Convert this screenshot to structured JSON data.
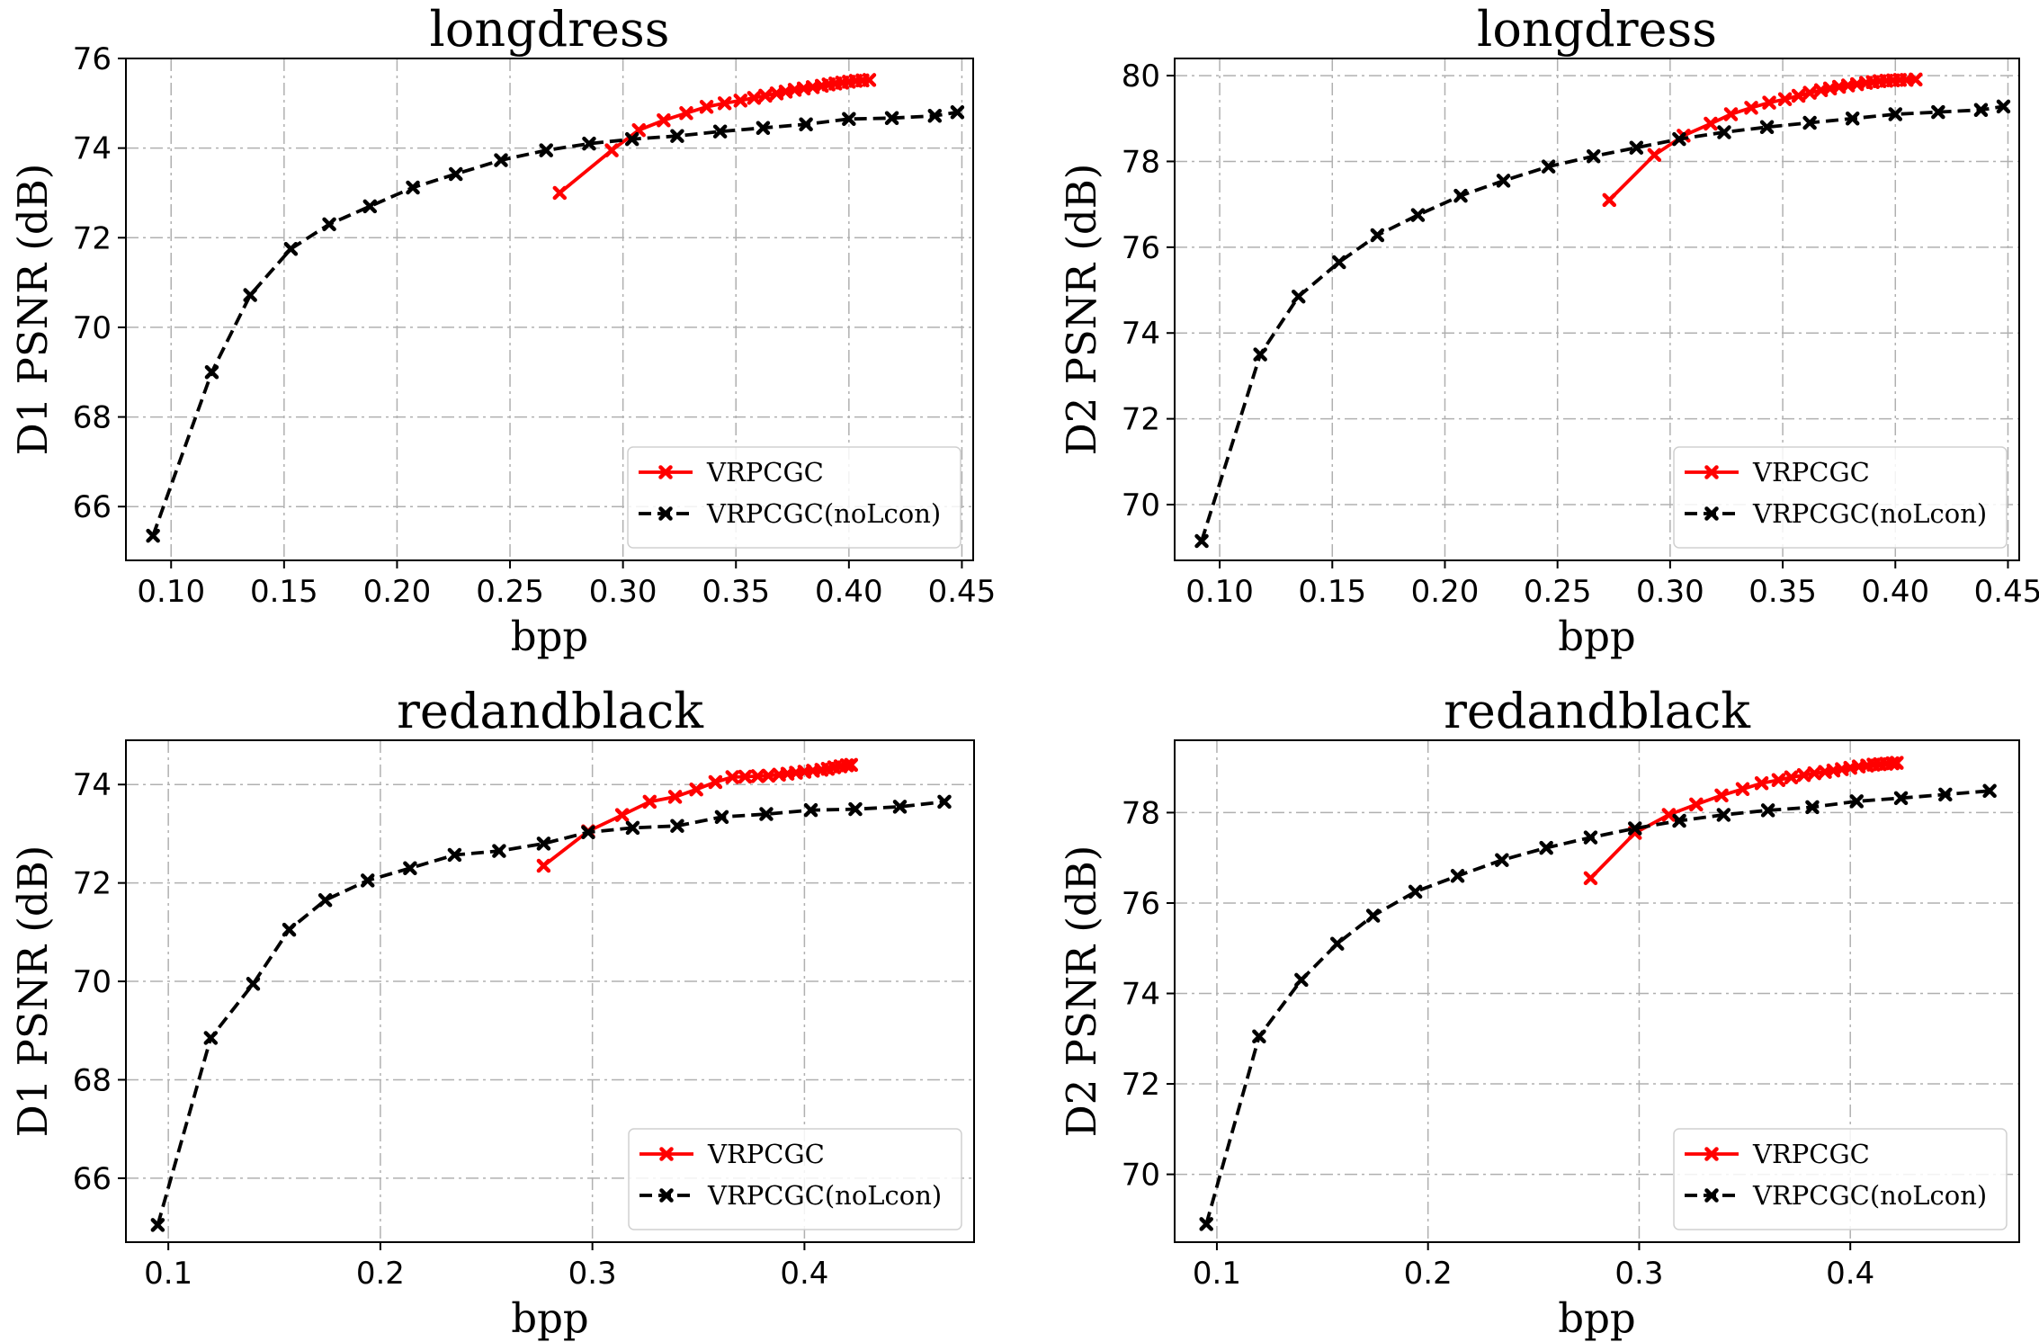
{
  "chart_data": [
    {
      "type": "line",
      "title": "longdress",
      "xlabel": "bpp",
      "ylabel": "D1 PSNR (dB)",
      "xlim": [
        0.08,
        0.455
      ],
      "ylim": [
        64.8,
        76
      ],
      "xticks": [
        0.1,
        0.15,
        0.2,
        0.25,
        0.3,
        0.35,
        0.4,
        0.45
      ],
      "xtick_labels": [
        "0.10",
        "0.15",
        "0.20",
        "0.25",
        "0.30",
        "0.35",
        "0.40",
        "0.45"
      ],
      "yticks": [
        66,
        68,
        70,
        72,
        74,
        76
      ],
      "ytick_labels": [
        "66",
        "68",
        "70",
        "72",
        "74",
        "76"
      ],
      "grid": true,
      "legend_position": "lower-right",
      "series": [
        {
          "name": "VRPCGC",
          "color": "#ff0000",
          "dashed": false,
          "x": [
            0.272,
            0.295,
            0.307,
            0.318,
            0.328,
            0.337,
            0.345,
            0.352,
            0.358,
            0.363,
            0.368,
            0.372,
            0.376,
            0.38,
            0.384,
            0.388,
            0.391,
            0.394,
            0.397,
            0.4,
            0.403,
            0.406,
            0.409
          ],
          "y": [
            73.0,
            73.95,
            74.4,
            74.62,
            74.78,
            74.92,
            75.0,
            75.06,
            75.12,
            75.17,
            75.22,
            75.26,
            75.3,
            75.33,
            75.36,
            75.39,
            75.42,
            75.44,
            75.46,
            75.48,
            75.5,
            75.51,
            75.52
          ]
        },
        {
          "name": "VRPCGC(noLcon)",
          "color": "#000000",
          "dashed": true,
          "x": [
            0.092,
            0.118,
            0.135,
            0.153,
            0.17,
            0.188,
            0.207,
            0.226,
            0.246,
            0.266,
            0.285,
            0.304,
            0.324,
            0.343,
            0.362,
            0.381,
            0.4,
            0.419,
            0.438,
            0.448
          ],
          "y": [
            65.35,
            69.0,
            70.72,
            71.75,
            72.3,
            72.7,
            73.12,
            73.42,
            73.73,
            73.95,
            74.1,
            74.2,
            74.27,
            74.37,
            74.45,
            74.53,
            74.65,
            74.67,
            74.72,
            74.8
          ]
        }
      ]
    },
    {
      "type": "line",
      "title": "longdress",
      "xlabel": "bpp",
      "ylabel": "D2 PSNR (dB)",
      "xlim": [
        0.08,
        0.455
      ],
      "ylim": [
        68.7,
        80.4
      ],
      "xticks": [
        0.1,
        0.15,
        0.2,
        0.25,
        0.3,
        0.35,
        0.4,
        0.45
      ],
      "xtick_labels": [
        "0.10",
        "0.15",
        "0.20",
        "0.25",
        "0.30",
        "0.35",
        "0.40",
        "0.45"
      ],
      "yticks": [
        70,
        72,
        74,
        76,
        78,
        80
      ],
      "ytick_labels": [
        "70",
        "72",
        "74",
        "76",
        "78",
        "80"
      ],
      "grid": true,
      "legend_position": "lower-right",
      "series": [
        {
          "name": "VRPCGC",
          "color": "#ff0000",
          "dashed": false,
          "x": [
            0.273,
            0.293,
            0.306,
            0.318,
            0.327,
            0.336,
            0.344,
            0.351,
            0.357,
            0.362,
            0.367,
            0.371,
            0.375,
            0.379,
            0.383,
            0.387,
            0.39,
            0.393,
            0.396,
            0.399,
            0.402,
            0.405,
            0.409
          ],
          "y": [
            77.1,
            78.15,
            78.6,
            78.88,
            79.1,
            79.25,
            79.37,
            79.45,
            79.53,
            79.6,
            79.66,
            79.7,
            79.74,
            79.77,
            79.8,
            79.83,
            79.85,
            79.87,
            79.88,
            79.89,
            79.9,
            79.9,
            79.91
          ]
        },
        {
          "name": "VRPCGC(noLcon)",
          "color": "#000000",
          "dashed": true,
          "x": [
            0.092,
            0.118,
            0.135,
            0.153,
            0.17,
            0.188,
            0.207,
            0.226,
            0.246,
            0.266,
            0.285,
            0.304,
            0.324,
            0.343,
            0.362,
            0.381,
            0.4,
            0.419,
            0.438,
            0.448
          ],
          "y": [
            69.15,
            73.5,
            74.85,
            75.65,
            76.28,
            76.75,
            77.2,
            77.55,
            77.88,
            78.12,
            78.32,
            78.52,
            78.68,
            78.8,
            78.9,
            79.0,
            79.1,
            79.15,
            79.2,
            79.28
          ]
        }
      ]
    },
    {
      "type": "line",
      "title": "redandblack",
      "xlabel": "bpp",
      "ylabel": "D1 PSNR (dB)",
      "xlim": [
        0.08,
        0.48
      ],
      "ylim": [
        64.7,
        74.9
      ],
      "xticks": [
        0.1,
        0.2,
        0.3,
        0.4
      ],
      "xtick_labels": [
        "0.1",
        "0.2",
        "0.3",
        "0.4"
      ],
      "yticks": [
        66,
        68,
        70,
        72,
        74
      ],
      "ytick_labels": [
        "66",
        "68",
        "70",
        "72",
        "74"
      ],
      "grid": true,
      "legend_position": "lower-right",
      "series": [
        {
          "name": "VRPCGC",
          "color": "#ff0000",
          "dashed": false,
          "x": [
            0.277,
            0.298,
            0.314,
            0.327,
            0.339,
            0.349,
            0.358,
            0.366,
            0.372,
            0.378,
            0.383,
            0.388,
            0.392,
            0.396,
            0.4,
            0.404,
            0.408,
            0.411,
            0.414,
            0.417,
            0.42,
            0.422
          ],
          "y": [
            72.35,
            73.05,
            73.38,
            73.65,
            73.75,
            73.9,
            74.05,
            74.15,
            74.16,
            74.17,
            74.18,
            74.2,
            74.22,
            74.24,
            74.26,
            74.28,
            74.3,
            74.32,
            74.35,
            74.37,
            74.39,
            74.4
          ]
        },
        {
          "name": "VRPCGC(noLcon)",
          "color": "#000000",
          "dashed": true,
          "x": [
            0.095,
            0.12,
            0.14,
            0.157,
            0.174,
            0.194,
            0.214,
            0.235,
            0.256,
            0.277,
            0.298,
            0.319,
            0.34,
            0.361,
            0.382,
            0.403,
            0.424,
            0.445,
            0.466
          ],
          "y": [
            65.05,
            68.85,
            69.95,
            71.05,
            71.65,
            72.05,
            72.3,
            72.57,
            72.65,
            72.8,
            73.03,
            73.12,
            73.16,
            73.34,
            73.4,
            73.48,
            73.5,
            73.55,
            73.65
          ]
        }
      ]
    },
    {
      "type": "line",
      "title": "redandblack",
      "xlabel": "bpp",
      "ylabel": "D2 PSNR (dB)",
      "xlim": [
        0.08,
        0.48
      ],
      "ylim": [
        68.5,
        79.6
      ],
      "xticks": [
        0.1,
        0.2,
        0.3,
        0.4
      ],
      "xtick_labels": [
        "0.1",
        "0.2",
        "0.3",
        "0.4"
      ],
      "yticks": [
        70,
        72,
        74,
        76,
        78
      ],
      "ytick_labels": [
        "70",
        "72",
        "74",
        "76",
        "78"
      ],
      "grid": true,
      "legend_position": "lower-right",
      "series": [
        {
          "name": "VRPCGC",
          "color": "#ff0000",
          "dashed": false,
          "x": [
            0.277,
            0.298,
            0.314,
            0.327,
            0.339,
            0.349,
            0.358,
            0.366,
            0.372,
            0.378,
            0.383,
            0.388,
            0.392,
            0.396,
            0.4,
            0.404,
            0.408,
            0.411,
            0.414,
            0.417,
            0.42,
            0.422
          ],
          "y": [
            76.55,
            77.55,
            77.95,
            78.18,
            78.38,
            78.52,
            78.65,
            78.72,
            78.78,
            78.83,
            78.87,
            78.9,
            78.93,
            78.96,
            78.99,
            79.02,
            79.04,
            79.06,
            79.07,
            79.08,
            79.09,
            79.1
          ]
        },
        {
          "name": "VRPCGC(noLcon)",
          "color": "#000000",
          "dashed": true,
          "x": [
            0.095,
            0.12,
            0.14,
            0.157,
            0.174,
            0.194,
            0.214,
            0.235,
            0.256,
            0.277,
            0.298,
            0.319,
            0.34,
            0.361,
            0.382,
            0.403,
            0.424,
            0.445,
            0.466
          ],
          "y": [
            68.9,
            73.05,
            74.3,
            75.1,
            75.72,
            76.25,
            76.6,
            76.95,
            77.22,
            77.45,
            77.65,
            77.82,
            77.95,
            78.05,
            78.12,
            78.25,
            78.32,
            78.4,
            78.48
          ]
        }
      ]
    }
  ]
}
